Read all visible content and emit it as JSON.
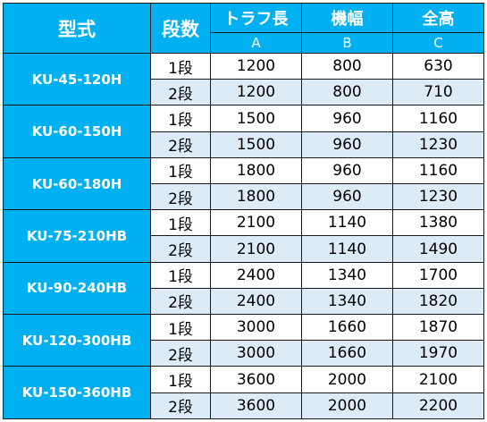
{
  "headers": {
    "model": "型式",
    "steps": "段数",
    "trough_length": "トラフ長",
    "width": "機幅",
    "height": "全高",
    "col_a": "A",
    "col_b": "B",
    "col_c": "C"
  },
  "rows": [
    {
      "model": "KU-45-120H",
      "levels": [
        {
          "step": "1段",
          "a": "1200",
          "b": "800",
          "c": "630"
        },
        {
          "step": "2段",
          "a": "1200",
          "b": "800",
          "c": "710"
        }
      ]
    },
    {
      "model": "KU-60-150H",
      "levels": [
        {
          "step": "1段",
          "a": "1500",
          "b": "960",
          "c": "1160"
        },
        {
          "step": "2段",
          "a": "1500",
          "b": "960",
          "c": "1230"
        }
      ]
    },
    {
      "model": "KU-60-180H",
      "levels": [
        {
          "step": "1段",
          "a": "1800",
          "b": "960",
          "c": "1160"
        },
        {
          "step": "2段",
          "a": "1800",
          "b": "960",
          "c": "1230"
        }
      ]
    },
    {
      "model": "KU-75-210HB",
      "levels": [
        {
          "step": "1段",
          "a": "2100",
          "b": "1140",
          "c": "1380"
        },
        {
          "step": "2段",
          "a": "2100",
          "b": "1140",
          "c": "1490"
        }
      ]
    },
    {
      "model": "KU-90-240HB",
      "levels": [
        {
          "step": "1段",
          "a": "2400",
          "b": "1340",
          "c": "1700"
        },
        {
          "step": "2段",
          "a": "2400",
          "b": "1340",
          "c": "1820"
        }
      ]
    },
    {
      "model": "KU-120-300HB",
      "levels": [
        {
          "step": "1段",
          "a": "3000",
          "b": "1660",
          "c": "1870"
        },
        {
          "step": "2段",
          "a": "3000",
          "b": "1660",
          "c": "1970"
        }
      ]
    },
    {
      "model": "KU-150-360HB",
      "levels": [
        {
          "step": "1段",
          "a": "3600",
          "b": "2000",
          "c": "2100"
        },
        {
          "step": "2段",
          "a": "3600",
          "b": "2000",
          "c": "2200"
        }
      ]
    }
  ],
  "colors": {
    "header_bg": "#00b0f0",
    "header_text": "#ffffff",
    "alt_row_bg": "#ddebf7"
  }
}
